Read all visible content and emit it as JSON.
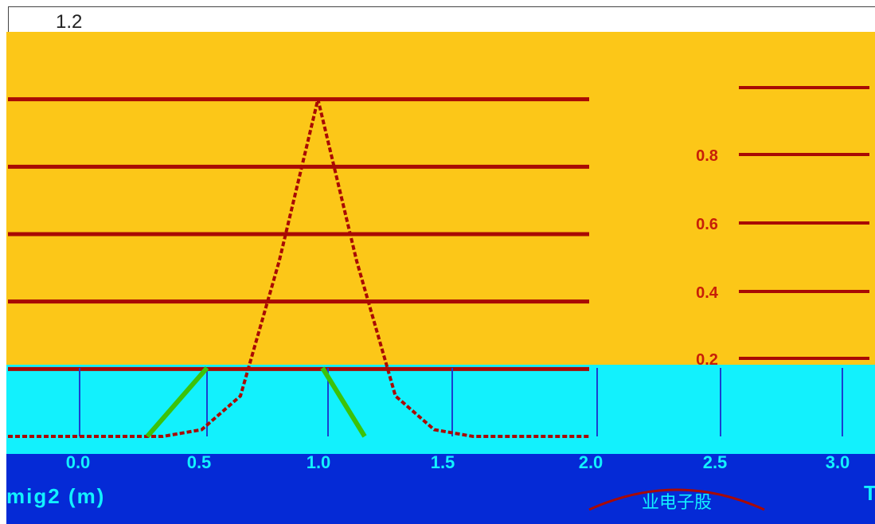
{
  "colors": {
    "band_top": "#fcc718",
    "band_mid": "#12f1fd",
    "band_bottom": "#052ad6",
    "curve": "#a80a04",
    "curve_lower": "#3cc20a",
    "gridline": "#a80a04",
    "right_axis_line": "#a80a04"
  },
  "fragments": {
    "top_left": "1.2",
    "bottom_left": "mig2 (m)",
    "bottom_right": "T",
    "seal_text": "业电子股"
  },
  "chart_data": {
    "type": "line",
    "title": "",
    "xlabel": "",
    "ylabel": "",
    "xlim": [
      0,
      6
    ],
    "ylim": [
      0,
      1.2
    ],
    "y_ticks_right": [
      "0.2",
      "0.4",
      "0.6",
      "0.8"
    ],
    "x_tick_labels": [
      "0.0",
      "0.5",
      "1.0",
      "1.5",
      "2.0",
      "2.5",
      "3.0"
    ],
    "grid": true,
    "series": [
      {
        "x": [
          0.0,
          0.4,
          0.8,
          1.2,
          1.6,
          2.0,
          2.4,
          2.8,
          3.2,
          3.6,
          4.0,
          4.4,
          4.8,
          5.2,
          5.6,
          6.0
        ],
        "y": [
          0.0,
          0.0,
          0.0,
          0.0,
          0.0,
          0.02,
          0.12,
          0.52,
          1.0,
          0.52,
          0.12,
          0.02,
          0.0,
          0.0,
          0.0,
          0.0
        ]
      }
    ]
  }
}
